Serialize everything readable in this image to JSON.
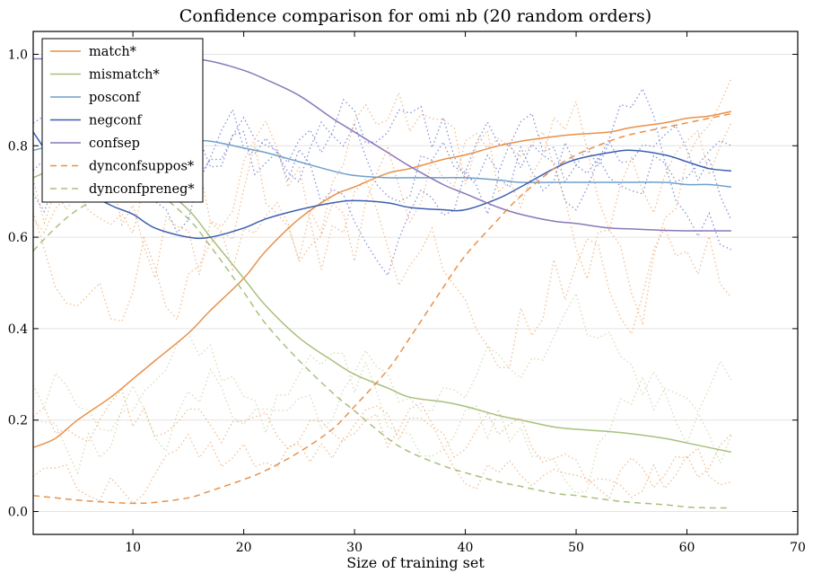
{
  "chart_data": {
    "type": "line",
    "title": "Confidence comparison for omi nb (20 random orders)",
    "xlabel": "Size of training set",
    "ylabel": "",
    "xlim": [
      1,
      70
    ],
    "ylim": [
      -0.05,
      1.05
    ],
    "xticks": [
      10,
      20,
      30,
      40,
      50,
      60,
      70
    ],
    "yticks": [
      0.0,
      0.2,
      0.4,
      0.6,
      0.8,
      1.0
    ],
    "grid": "horizontal",
    "legend_position": "top-left",
    "x": [
      1,
      3,
      5,
      8,
      10,
      12,
      15,
      17,
      20,
      22,
      25,
      28,
      30,
      33,
      35,
      38,
      40,
      43,
      45,
      48,
      50,
      53,
      55,
      58,
      60,
      62,
      64
    ],
    "series": [
      {
        "name": "match*",
        "color": "#e8914a",
        "dash": "solid",
        "values": [
          0.14,
          0.16,
          0.2,
          0.25,
          0.29,
          0.33,
          0.39,
          0.44,
          0.51,
          0.57,
          0.64,
          0.69,
          0.71,
          0.74,
          0.75,
          0.77,
          0.78,
          0.8,
          0.81,
          0.82,
          0.825,
          0.83,
          0.84,
          0.85,
          0.86,
          0.865,
          0.875
        ]
      },
      {
        "name": "mismatch*",
        "color": "#a8c07e",
        "dash": "solid",
        "values": [
          0.73,
          0.75,
          0.76,
          0.76,
          0.75,
          0.72,
          0.66,
          0.6,
          0.51,
          0.45,
          0.38,
          0.33,
          0.3,
          0.27,
          0.25,
          0.24,
          0.23,
          0.21,
          0.2,
          0.185,
          0.18,
          0.175,
          0.17,
          0.16,
          0.15,
          0.14,
          0.13
        ]
      },
      {
        "name": "posconf",
        "color": "#6f9fcb",
        "dash": "solid",
        "values": [
          0.79,
          0.8,
          0.8,
          0.81,
          0.81,
          0.81,
          0.81,
          0.81,
          0.795,
          0.785,
          0.765,
          0.745,
          0.735,
          0.73,
          0.73,
          0.73,
          0.73,
          0.725,
          0.72,
          0.72,
          0.72,
          0.72,
          0.72,
          0.72,
          0.715,
          0.715,
          0.71
        ]
      },
      {
        "name": "negconf",
        "color": "#3e5fb0",
        "dash": "solid",
        "values": [
          0.83,
          0.76,
          0.71,
          0.67,
          0.65,
          0.62,
          0.6,
          0.6,
          0.62,
          0.64,
          0.66,
          0.675,
          0.68,
          0.675,
          0.665,
          0.66,
          0.66,
          0.685,
          0.71,
          0.75,
          0.77,
          0.785,
          0.79,
          0.78,
          0.765,
          0.75,
          0.745
        ]
      },
      {
        "name": "confsep",
        "color": "#8a78b8",
        "dash": "solid",
        "values": [
          0.99,
          0.99,
          0.99,
          0.99,
          0.99,
          0.99,
          0.99,
          0.985,
          0.965,
          0.945,
          0.91,
          0.86,
          0.83,
          0.785,
          0.755,
          0.715,
          0.695,
          0.665,
          0.65,
          0.635,
          0.63,
          0.62,
          0.618,
          0.615,
          0.614,
          0.614,
          0.614
        ]
      },
      {
        "name": "dynconfsuppos*",
        "color": "#e8914a",
        "dash": "dashed",
        "values": [
          0.035,
          0.03,
          0.025,
          0.02,
          0.018,
          0.02,
          0.03,
          0.045,
          0.07,
          0.09,
          0.13,
          0.18,
          0.23,
          0.31,
          0.38,
          0.49,
          0.56,
          0.64,
          0.69,
          0.75,
          0.78,
          0.81,
          0.825,
          0.84,
          0.85,
          0.86,
          0.87
        ]
      },
      {
        "name": "dynconfpreneg*",
        "color": "#a8c07e",
        "dash": "dashed",
        "values": [
          0.57,
          0.62,
          0.66,
          0.7,
          0.71,
          0.7,
          0.64,
          0.58,
          0.48,
          0.41,
          0.33,
          0.26,
          0.22,
          0.16,
          0.13,
          0.1,
          0.085,
          0.065,
          0.055,
          0.04,
          0.035,
          0.025,
          0.02,
          0.015,
          0.01,
          0.008,
          0.008
        ]
      }
    ]
  }
}
